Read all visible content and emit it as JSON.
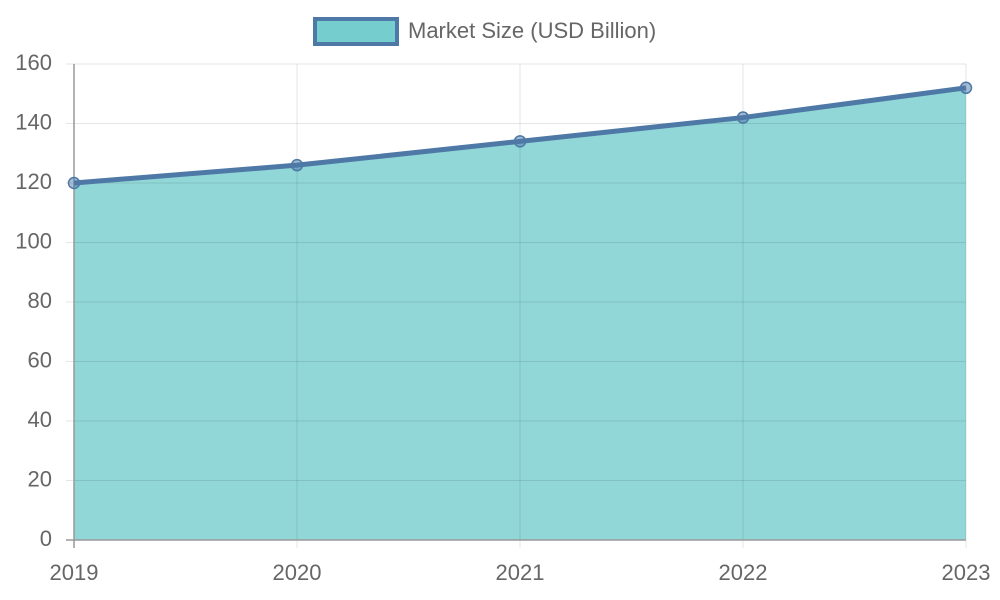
{
  "chart_data": {
    "type": "area",
    "categories": [
      "2019",
      "2020",
      "2021",
      "2022",
      "2023"
    ],
    "series": [
      {
        "name": "Market Size (USD Billion)",
        "color": "#4e79a7",
        "fill": "#76cdcd",
        "values": [
          120,
          126,
          134,
          142,
          152
        ]
      }
    ],
    "ylim": [
      0,
      160
    ],
    "yticks": [
      0,
      20,
      40,
      60,
      80,
      100,
      120,
      140,
      160
    ],
    "grid": true,
    "legend": "top"
  }
}
